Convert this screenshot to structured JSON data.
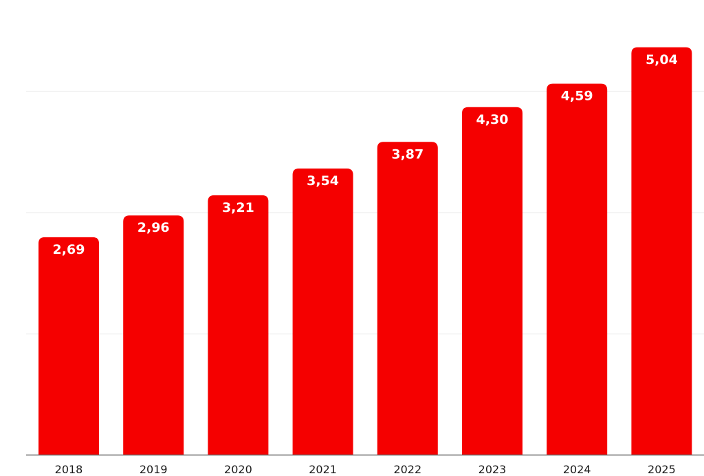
{
  "chart_data": {
    "type": "bar",
    "categories": [
      "2018",
      "2019",
      "2020",
      "2021",
      "2022",
      "2023",
      "2024",
      "2025"
    ],
    "values": [
      2.69,
      2.96,
      3.21,
      3.54,
      3.87,
      4.3,
      4.59,
      5.04
    ],
    "value_labels": [
      "2,69",
      "2,96",
      "3,21",
      "3,54",
      "3,87",
      "4,30",
      "4,59",
      "5,04"
    ],
    "title": "",
    "xlabel": "",
    "ylabel": "",
    "ylim": [
      0,
      6
    ],
    "grid": true,
    "gridlines_at": [
      1.5,
      3,
      4.5
    ],
    "legend": "none",
    "colors": {
      "bar": "#f50000",
      "bar_label": "#ffffff",
      "tick_label": "#1a1a1a",
      "grid": "#e6e6e6",
      "axis": "#6b6b6b"
    }
  }
}
